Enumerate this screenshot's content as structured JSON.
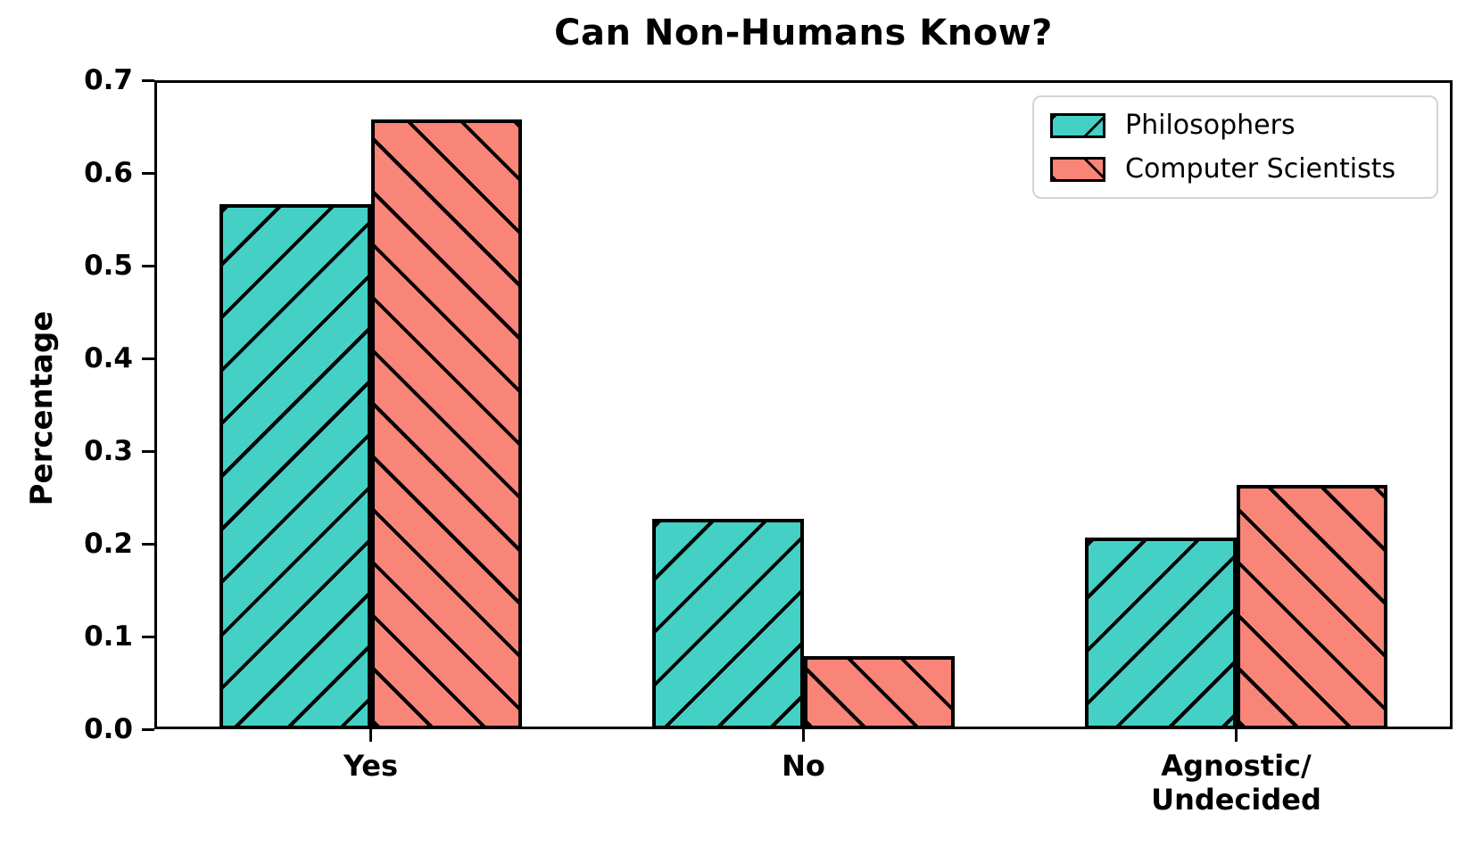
{
  "title": "Can Non-Humans Know?",
  "ylabel": "Percentage",
  "colors": {
    "philosophers": "#45D0C5",
    "computer_scientists": "#F98478",
    "hatch": "#000000",
    "legend_border": "#d4d4d4"
  },
  "legend": {
    "items": [
      {
        "label": "Philosophers",
        "hatch": "/"
      },
      {
        "label": "Computer Scientists",
        "hatch": "\\"
      }
    ]
  },
  "chart_data": {
    "type": "bar",
    "title": "Can Non-Humans Know?",
    "categories": [
      "Yes",
      "No",
      "Agnostic/\nUndecided"
    ],
    "series": [
      {
        "name": "Philosophers",
        "values": [
          0.566,
          0.227,
          0.207
        ],
        "color": "#45D0C5",
        "hatch": "/"
      },
      {
        "name": "Computer Scientists",
        "values": [
          0.658,
          0.079,
          0.263
        ],
        "color": "#F98478",
        "hatch": "\\"
      }
    ],
    "xlabel": "",
    "ylabel": "Percentage",
    "ylim": [
      0,
      0.7
    ],
    "yticks": [
      "0.0",
      "0.1",
      "0.2",
      "0.3",
      "0.4",
      "0.5",
      "0.6",
      "0.7"
    ],
    "grid": false,
    "legend_position": "upper right"
  }
}
